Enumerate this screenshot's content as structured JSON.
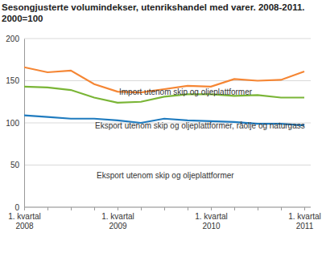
{
  "chart_data": {
    "type": "line",
    "title": "Sesongjusterte volumindekser, utenrikshandel med varer. 2008-2011.",
    "subtitle": "2000=100",
    "categories": [
      "1. kvartal 2008",
      null,
      null,
      null,
      "1. kvartal 2009",
      null,
      null,
      null,
      "1. kvartal 2010",
      null,
      null,
      null,
      "1. kvartal 2011"
    ],
    "series": [
      {
        "name": "Import utenom skip og oljeplattformer",
        "color": "#f58634",
        "values": [
          166,
          160,
          162,
          146,
          137,
          136,
          140,
          144,
          143,
          152,
          150,
          151,
          161
        ]
      },
      {
        "name": "Eksport utenom skip og oljeplattformer, råolje og naturgass",
        "color": "#7ab536",
        "values": [
          143,
          142,
          139,
          130,
          124,
          125,
          131,
          134,
          134,
          132,
          133,
          130,
          130
        ]
      },
      {
        "name": "Eksport utenom skip og oljeplattformer",
        "color": "#1f7bbf",
        "values": [
          109,
          107,
          105,
          105,
          103,
          100,
          105,
          103,
          102,
          101,
          99,
          99,
          97
        ]
      }
    ],
    "ylim": [
      0,
      200
    ],
    "yticks": [
      0,
      50,
      100,
      150,
      200
    ],
    "grid": true
  }
}
